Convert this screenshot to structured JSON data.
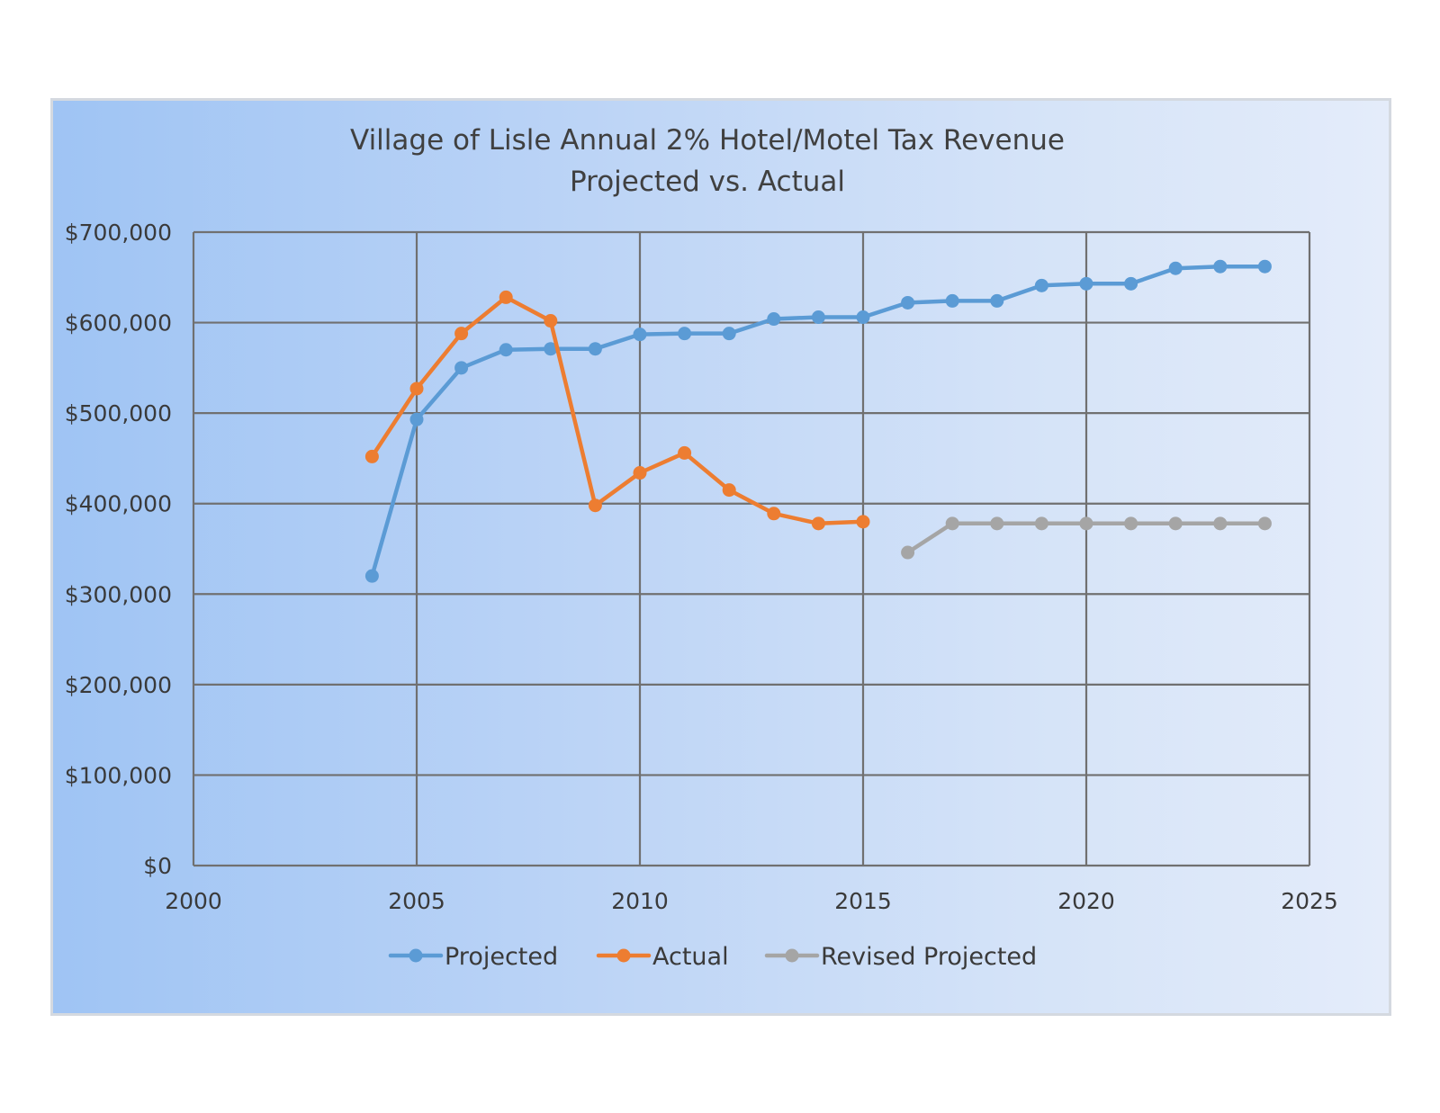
{
  "chart_data": {
    "type": "line",
    "title": "Village of Lisle Annual 2% Hotel/Motel Tax Revenue",
    "subtitle": "Projected vs. Actual",
    "xlim": [
      2000,
      2025
    ],
    "ylim": [
      0,
      700000
    ],
    "x_ticks": [
      2000,
      2005,
      2010,
      2015,
      2020,
      2025
    ],
    "x_tick_labels": [
      "2000",
      "2005",
      "2010",
      "2015",
      "2020",
      "2025"
    ],
    "y_ticks": [
      0,
      100000,
      200000,
      300000,
      400000,
      500000,
      600000,
      700000
    ],
    "y_tick_labels": [
      "$0",
      "$100,000",
      "$200,000",
      "$300,000",
      "$400,000",
      "$500,000",
      "$600,000",
      "$700,000"
    ],
    "grid": true,
    "legend_position": "bottom",
    "series": [
      {
        "name": "Projected",
        "color": "#5b9bd5",
        "points": [
          [
            2004,
            320000
          ],
          [
            2005,
            493000
          ],
          [
            2006,
            550000
          ],
          [
            2007,
            570000
          ],
          [
            2008,
            571000
          ],
          [
            2009,
            571000
          ],
          [
            2010,
            587000
          ],
          [
            2011,
            588000
          ],
          [
            2012,
            588000
          ],
          [
            2013,
            604000
          ],
          [
            2014,
            606000
          ],
          [
            2015,
            606000
          ],
          [
            2016,
            622000
          ],
          [
            2017,
            624000
          ],
          [
            2018,
            624000
          ],
          [
            2019,
            641000
          ],
          [
            2020,
            643000
          ],
          [
            2021,
            643000
          ],
          [
            2022,
            660000
          ],
          [
            2023,
            662000
          ],
          [
            2024,
            662000
          ]
        ]
      },
      {
        "name": "Actual",
        "color": "#ed7d31",
        "points": [
          [
            2004,
            452000
          ],
          [
            2005,
            527000
          ],
          [
            2006,
            588000
          ],
          [
            2007,
            628000
          ],
          [
            2008,
            602000
          ],
          [
            2009,
            398000
          ],
          [
            2010,
            434000
          ],
          [
            2011,
            456000
          ],
          [
            2012,
            415000
          ],
          [
            2013,
            389000
          ],
          [
            2014,
            378000
          ],
          [
            2015,
            380000
          ]
        ]
      },
      {
        "name": "Revised Projected",
        "color": "#a5a5a5",
        "points": [
          [
            2016,
            346000
          ],
          [
            2017,
            378000
          ],
          [
            2018,
            378000
          ],
          [
            2019,
            378000
          ],
          [
            2020,
            378000
          ],
          [
            2021,
            378000
          ],
          [
            2022,
            378000
          ],
          [
            2023,
            378000
          ],
          [
            2024,
            378000
          ]
        ]
      }
    ]
  }
}
